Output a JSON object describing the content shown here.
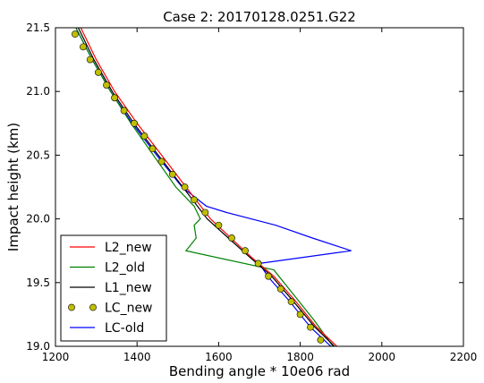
{
  "chart_data": {
    "type": "line",
    "title": "Case 2: 20170128.0251.G22",
    "xlabel": "Bending angle * 10e06 rad",
    "ylabel": "Impact height (km)",
    "xlim": [
      1200,
      2200
    ],
    "ylim": [
      19.0,
      21.5
    ],
    "xticks": [
      "1200",
      "1400",
      "1600",
      "1800",
      "2000",
      "2200"
    ],
    "yticks": [
      "19.0",
      "19.5",
      "20.0",
      "20.5",
      "21.0",
      "21.5"
    ],
    "grid": false,
    "legend_position": "bottom-left",
    "series": [
      {
        "name": "L2_new",
        "color": "#ff0000",
        "style": "line",
        "x": [
          1262,
          1300,
          1345,
          1400,
          1460,
          1520,
          1580,
          1630,
          1680,
          1735,
          1790,
          1840,
          1890
        ],
        "y": [
          21.5,
          21.25,
          21.0,
          20.75,
          20.5,
          20.25,
          20.0,
          19.85,
          19.7,
          19.55,
          19.35,
          19.15,
          19.0
        ]
      },
      {
        "name": "L2_old",
        "color": "#008000",
        "style": "line",
        "x": [
          1250,
          1290,
          1335,
          1385,
          1440,
          1495,
          1540,
          1555,
          1540,
          1545,
          1520,
          1735,
          1785,
          1835,
          1880
        ],
        "y": [
          21.5,
          21.25,
          21.0,
          20.75,
          20.5,
          20.25,
          20.1,
          20.0,
          19.95,
          19.85,
          19.75,
          19.6,
          19.4,
          19.2,
          19.0
        ]
      },
      {
        "name": "L1_new",
        "color": "#000000",
        "style": "line",
        "x": [
          1256,
          1294,
          1339,
          1392,
          1452,
          1512,
          1572,
          1624,
          1676,
          1730,
          1784,
          1836,
          1884
        ],
        "y": [
          21.5,
          21.25,
          21.0,
          20.75,
          20.5,
          20.25,
          20.0,
          19.85,
          19.7,
          19.55,
          19.35,
          19.15,
          19.0
        ]
      },
      {
        "name": "LC_new",
        "color": "#bfbf00",
        "style": "markers",
        "x": [
          1248,
          1268,
          1285,
          1305,
          1325,
          1345,
          1368,
          1393,
          1418,
          1438,
          1460,
          1487,
          1517,
          1540,
          1567,
          1600,
          1632,
          1665,
          1697,
          1722,
          1752,
          1778,
          1800,
          1825,
          1850
        ],
        "y": [
          21.45,
          21.35,
          21.25,
          21.15,
          21.05,
          20.95,
          20.85,
          20.75,
          20.65,
          20.55,
          20.45,
          20.35,
          20.25,
          20.15,
          20.05,
          19.95,
          19.85,
          19.75,
          19.65,
          19.55,
          19.45,
          19.35,
          19.25,
          19.15,
          19.05
        ]
      },
      {
        "name": "LC-old",
        "color": "#0000ff",
        "style": "line",
        "x": [
          1250,
          1290,
          1335,
          1388,
          1448,
          1510,
          1570,
          1620,
          1740,
          1830,
          1925,
          1700,
          1720,
          1775,
          1825,
          1875
        ],
        "y": [
          21.5,
          21.25,
          21.0,
          20.75,
          20.5,
          20.25,
          20.1,
          20.05,
          19.95,
          19.85,
          19.75,
          19.65,
          19.55,
          19.35,
          19.15,
          19.0
        ]
      }
    ]
  }
}
